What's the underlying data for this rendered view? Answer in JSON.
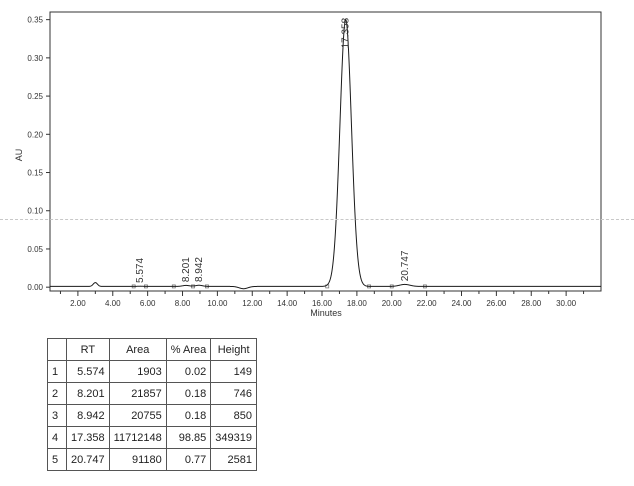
{
  "chart_data": {
    "type": "line",
    "xlabel": "Minutes",
    "ylabel": "AU",
    "xlim": [
      0.4,
      32.0
    ],
    "ylim": [
      -0.005,
      0.36
    ],
    "x_ticks": [
      "2.00",
      "4.00",
      "6.00",
      "8.00",
      "10.00",
      "12.00",
      "14.00",
      "16.00",
      "18.00",
      "20.00",
      "22.00",
      "24.00",
      "26.00",
      "28.00",
      "30.00"
    ],
    "x_tick_values": [
      2,
      4,
      6,
      8,
      10,
      12,
      14,
      16,
      18,
      20,
      22,
      24,
      26,
      28,
      30
    ],
    "y_ticks": [
      "0.00",
      "0.05",
      "0.10",
      "0.15",
      "0.20",
      "0.25",
      "0.30",
      "0.35"
    ],
    "y_tick_values": [
      0,
      0.05,
      0.1,
      0.15,
      0.2,
      0.25,
      0.3,
      0.35
    ],
    "grid": false,
    "line_color": "#1a1a1a",
    "baseline": 0.001,
    "trace_features": [
      {
        "x": 3.0,
        "height": 0.005,
        "sigma": 0.12
      },
      {
        "x": 5.574,
        "height": 0.0003,
        "sigma": 0.15
      },
      {
        "x": 8.201,
        "height": 0.0013,
        "sigma": 0.2
      },
      {
        "x": 8.942,
        "height": 0.0015,
        "sigma": 0.2
      },
      {
        "x": 11.5,
        "height": -0.003,
        "sigma": 0.25
      },
      {
        "x": 17.358,
        "height": 0.349,
        "sigma": 0.33
      },
      {
        "x": 20.747,
        "height": 0.0026,
        "sigma": 0.3
      }
    ],
    "peak_labels": [
      {
        "label": "5.574",
        "x": 5.574,
        "y": 0.0003
      },
      {
        "label": "8.201",
        "x": 8.201,
        "y": 0.0013
      },
      {
        "label": "8.942",
        "x": 8.942,
        "y": 0.0015
      },
      {
        "label": "17.358",
        "x": 17.358,
        "y": 0.349
      },
      {
        "label": "20.747",
        "x": 20.747,
        "y": 0.0026
      }
    ],
    "integration_marks": [
      5.2,
      5.9,
      7.5,
      8.6,
      9.4,
      16.3,
      18.7,
      20.0,
      21.9
    ]
  },
  "table": {
    "headers": [
      "",
      "RT",
      "Area",
      "% Area",
      "Height"
    ],
    "rows": [
      [
        "1",
        "5.574",
        "1903",
        "0.02",
        "149"
      ],
      [
        "2",
        "8.201",
        "21857",
        "0.18",
        "746"
      ],
      [
        "3",
        "8.942",
        "20755",
        "0.18",
        "850"
      ],
      [
        "4",
        "17.358",
        "11712148",
        "98.85",
        "349319"
      ],
      [
        "5",
        "20.747",
        "91180",
        "0.77",
        "2581"
      ]
    ]
  }
}
